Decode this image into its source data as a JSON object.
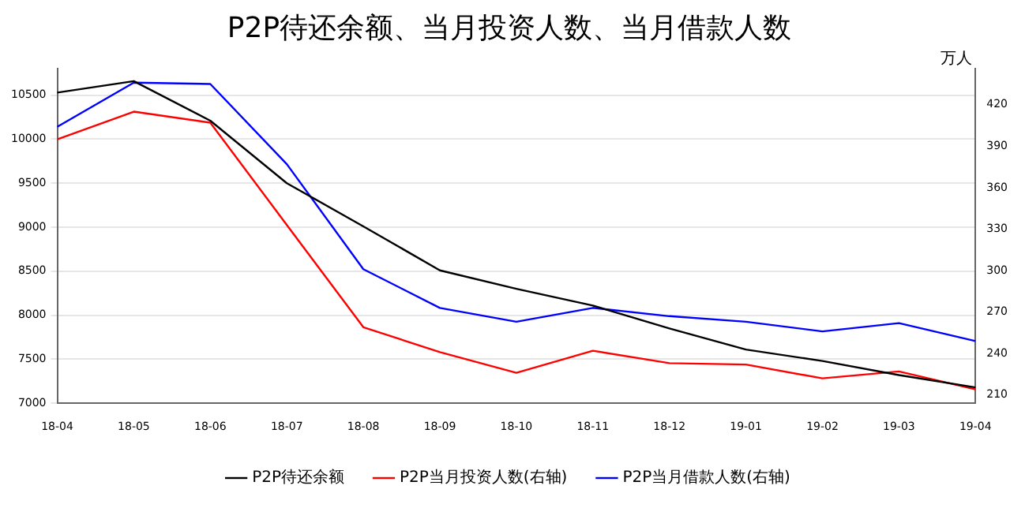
{
  "chart_data": {
    "type": "line",
    "title": "P2P待还余额、当月投资人数、当月借款人数",
    "y2label": "万人",
    "categories": [
      "18-04",
      "18-05",
      "18-06",
      "18-07",
      "18-08",
      "18-09",
      "18-10",
      "18-11",
      "18-12",
      "19-01",
      "19-02",
      "19-03",
      "19-04"
    ],
    "series": [
      {
        "name": "P2P待还余额",
        "color": "#000000",
        "values": [
          10530,
          10660,
          10210,
          9500,
          9010,
          8510,
          8300,
          8110,
          7850,
          7610,
          7480,
          7320,
          7180
        ]
      },
      {
        "name": "P2P当月投资人数(右轴)",
        "color": "#ff0000",
        "axis": "y2",
        "values": [
          395,
          415,
          407,
          333,
          259,
          241,
          226,
          242,
          233,
          232,
          222,
          227,
          214
        ]
      },
      {
        "name": "P2P当月借款人数(右轴)",
        "color": "#0000ff",
        "axis": "y2",
        "values": [
          404,
          436,
          435,
          377,
          301,
          273,
          263,
          273,
          267,
          263,
          256,
          262,
          249
        ]
      }
    ],
    "ylim": [
      7000,
      10800
    ],
    "yticks": [
      7000,
      7500,
      8000,
      8500,
      9000,
      9500,
      10000,
      10500
    ],
    "y2lim": [
      204,
      446
    ],
    "y2ticks": [
      210,
      240,
      270,
      300,
      330,
      360,
      390,
      420
    ],
    "grid": "y",
    "legend": "bottom",
    "marker": "none",
    "line_style": "solid"
  }
}
